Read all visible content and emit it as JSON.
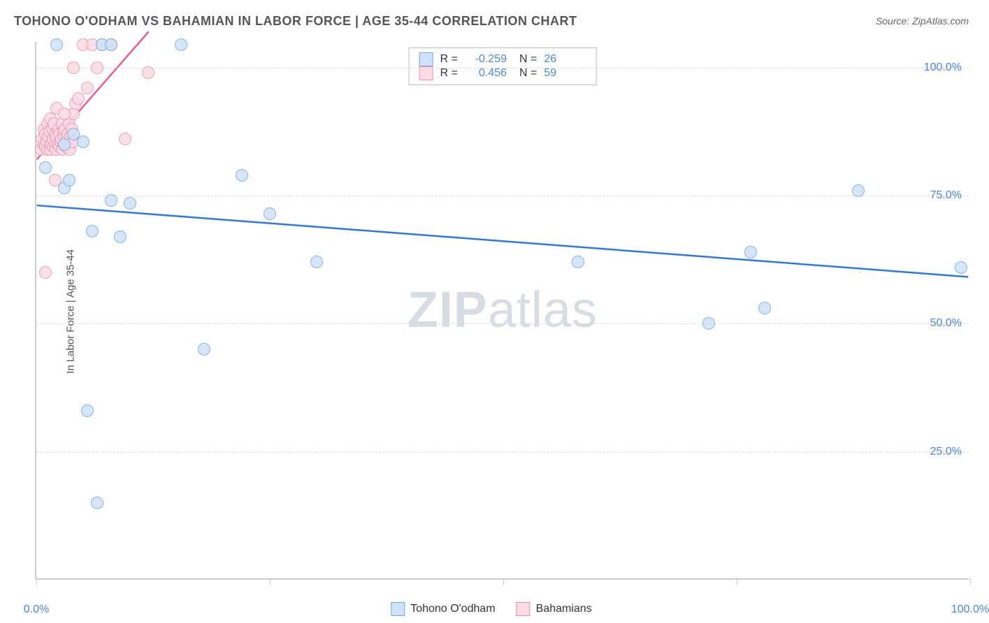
{
  "title": "TOHONO O'ODHAM VS BAHAMIAN IN LABOR FORCE | AGE 35-44 CORRELATION CHART",
  "source": "Source: ZipAtlas.com",
  "ylabel": "In Labor Force | Age 35-44",
  "watermark_bold": "ZIP",
  "watermark_rest": "atlas",
  "chart": {
    "type": "scatter",
    "xlim": [
      0,
      100
    ],
    "ylim": [
      0,
      105
    ],
    "xticks": [
      0,
      25,
      50,
      75,
      100
    ],
    "xtick_labels": [
      "0.0%",
      "",
      "",
      "",
      "100.0%"
    ],
    "yticks": [
      25,
      50,
      75,
      100
    ],
    "ytick_labels": [
      "25.0%",
      "50.0%",
      "75.0%",
      "100.0%"
    ],
    "grid_color": "#dddddd",
    "axis_color": "#cccccc",
    "tick_label_color": "#4a86e8",
    "background_color": "#ffffff",
    "marker_radius": 9,
    "marker_stroke": 1.5,
    "series": [
      {
        "name": "Tohono O'odham",
        "fill": "#cfe2f7",
        "stroke": "#6ea8e8",
        "R": "-0.259",
        "N": "26",
        "points": [
          [
            1.0,
            80.5
          ],
          [
            2.2,
            104.5
          ],
          [
            3.0,
            76.5
          ],
          [
            3.0,
            85.0
          ],
          [
            3.5,
            78.0
          ],
          [
            4.0,
            87.0
          ],
          [
            5.0,
            85.5
          ],
          [
            5.5,
            33.0
          ],
          [
            6.0,
            68.0
          ],
          [
            6.5,
            15.0
          ],
          [
            7.0,
            104.5
          ],
          [
            8.0,
            104.5
          ],
          [
            8.0,
            74.0
          ],
          [
            9.0,
            67.0
          ],
          [
            10.0,
            73.5
          ],
          [
            15.5,
            104.5
          ],
          [
            18.0,
            45.0
          ],
          [
            22.0,
            79.0
          ],
          [
            25.0,
            71.5
          ],
          [
            30.0,
            62.0
          ],
          [
            58.0,
            62.0
          ],
          [
            72.0,
            50.0
          ],
          [
            76.5,
            64.0
          ],
          [
            78.0,
            53.0
          ],
          [
            88.0,
            76.0
          ],
          [
            99.0,
            61.0
          ]
        ],
        "trend": {
          "x1": 0,
          "y1": 73.0,
          "x2": 100,
          "y2": 59.0,
          "color": "#2d78e6",
          "width": 2.5
        }
      },
      {
        "name": "Bahamians",
        "fill": "#fcdbe4",
        "stroke": "#f08fb0",
        "R": "0.456",
        "N": "59",
        "points": [
          [
            0.5,
            84.0
          ],
          [
            0.6,
            86.0
          ],
          [
            0.8,
            85.0
          ],
          [
            0.8,
            88.0
          ],
          [
            1.0,
            84.5
          ],
          [
            1.0,
            87.0
          ],
          [
            1.1,
            85.5
          ],
          [
            1.2,
            89.0
          ],
          [
            1.2,
            84.0
          ],
          [
            1.3,
            86.5
          ],
          [
            1.4,
            87.5
          ],
          [
            1.5,
            84.0
          ],
          [
            1.5,
            90.0
          ],
          [
            1.6,
            85.0
          ],
          [
            1.7,
            88.0
          ],
          [
            1.8,
            84.5
          ],
          [
            1.8,
            86.0
          ],
          [
            1.9,
            89.0
          ],
          [
            2.0,
            85.0
          ],
          [
            2.0,
            87.0
          ],
          [
            2.1,
            84.0
          ],
          [
            2.2,
            86.5
          ],
          [
            2.2,
            92.0
          ],
          [
            2.3,
            85.0
          ],
          [
            2.4,
            88.0
          ],
          [
            2.5,
            84.5
          ],
          [
            2.5,
            87.0
          ],
          [
            2.6,
            85.5
          ],
          [
            2.7,
            86.0
          ],
          [
            2.8,
            89.0
          ],
          [
            2.8,
            84.0
          ],
          [
            2.9,
            87.5
          ],
          [
            3.0,
            85.0
          ],
          [
            3.0,
            86.5
          ],
          [
            3.1,
            88.0
          ],
          [
            3.2,
            84.5
          ],
          [
            3.3,
            86.0
          ],
          [
            3.4,
            87.0
          ],
          [
            3.5,
            85.0
          ],
          [
            3.5,
            89.0
          ],
          [
            3.6,
            84.0
          ],
          [
            3.7,
            86.5
          ],
          [
            3.8,
            88.0
          ],
          [
            4.0,
            85.5
          ],
          [
            4.0,
            91.0
          ],
          [
            4.2,
            93.0
          ],
          [
            4.5,
            94.0
          ],
          [
            1.0,
            60.0
          ],
          [
            2.0,
            78.0
          ],
          [
            3.0,
            91.0
          ],
          [
            4.0,
            100.0
          ],
          [
            5.0,
            104.5
          ],
          [
            5.5,
            96.0
          ],
          [
            6.0,
            104.5
          ],
          [
            6.5,
            100.0
          ],
          [
            7.0,
            104.5
          ],
          [
            8.0,
            104.5
          ],
          [
            9.5,
            86.0
          ],
          [
            12.0,
            99.0
          ]
        ],
        "trend": {
          "x1": 0,
          "y1": 82.0,
          "x2": 12,
          "y2": 107.0,
          "color": "#ef5b8f",
          "width": 2.5
        }
      }
    ]
  },
  "legend_top": {
    "border_color": "#bbbbbb",
    "label_R": "R =",
    "label_N": "N =",
    "value_color": "#4a86e8"
  },
  "legend_bottom": {
    "items": [
      {
        "label": "Tohono O'odham",
        "fill": "#cfe2f7",
        "stroke": "#6ea8e8"
      },
      {
        "label": "Bahamians",
        "fill": "#fcdbe4",
        "stroke": "#f08fb0"
      }
    ]
  }
}
